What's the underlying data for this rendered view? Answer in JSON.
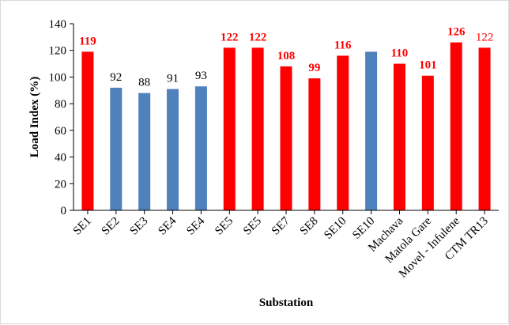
{
  "chart_data": {
    "type": "bar",
    "title": "",
    "xlabel": "Substation",
    "ylabel": "Load Index (%)",
    "ylim": [
      0,
      140
    ],
    "yticks": [
      0,
      20,
      40,
      60,
      80,
      100,
      120,
      140
    ],
    "grid": false,
    "legend": "none",
    "categories": [
      "SE1",
      "SE2",
      "SE3",
      "SE4",
      "SE4",
      "SE5",
      "SE5",
      "SE7",
      "SE8",
      "SE10",
      "SE10",
      "Machava",
      "Matola Gare",
      "Movel - Infulene",
      "CTM TR13"
    ],
    "values": [
      119,
      92,
      88,
      91,
      93,
      122,
      122,
      108,
      99,
      116,
      119,
      110,
      101,
      126,
      122
    ],
    "bar_colors": [
      "#ff0000",
      "#4f81bd",
      "#4f81bd",
      "#4f81bd",
      "#4f81bd",
      "#ff0000",
      "#ff0000",
      "#ff0000",
      "#ff0000",
      "#ff0000",
      "#4f81bd",
      "#ff0000",
      "#ff0000",
      "#ff0000",
      "#ff0000"
    ],
    "data_labels": [
      "119",
      "92",
      "88",
      "91",
      "93",
      "122",
      "122",
      "108",
      "99",
      "116",
      "",
      "110",
      "101",
      "126",
      "122"
    ],
    "label_colors": [
      "#ff0000",
      "#000000",
      "#000000",
      "#000000",
      "#000000",
      "#ff0000",
      "#ff0000",
      "#ff0000",
      "#ff0000",
      "#ff0000",
      "#000000",
      "#ff0000",
      "#ff0000",
      "#ff0000",
      "#ff0000"
    ],
    "label_bold": [
      true,
      false,
      false,
      false,
      false,
      true,
      true,
      true,
      true,
      true,
      false,
      true,
      true,
      true,
      false
    ]
  }
}
